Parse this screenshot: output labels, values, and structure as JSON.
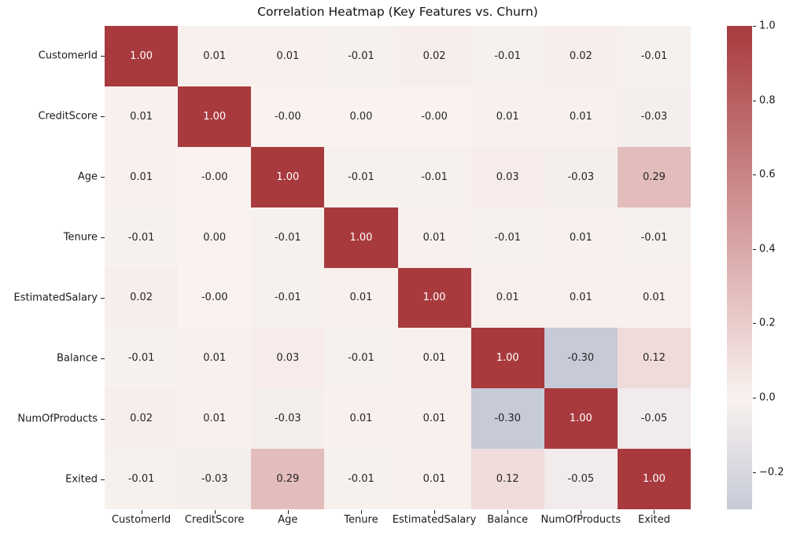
{
  "chart_data": {
    "type": "heatmap",
    "title": "Correlation Heatmap (Key Features vs. Churn)",
    "row_labels": [
      "CustomerId",
      "CreditScore",
      "Age",
      "Tenure",
      "EstimatedSalary",
      "Balance",
      "NumOfProducts",
      "Exited"
    ],
    "col_labels": [
      "CustomerId",
      "CreditScore",
      "Age",
      "Tenure",
      "EstimatedSalary",
      "Balance",
      "NumOfProducts",
      "Exited"
    ],
    "matrix": [
      [
        "1.00",
        "0.01",
        "0.01",
        "-0.01",
        "0.02",
        "-0.01",
        "0.02",
        "-0.01"
      ],
      [
        "0.01",
        "1.00",
        "-0.00",
        "0.00",
        "-0.00",
        "0.01",
        "0.01",
        "-0.03"
      ],
      [
        "0.01",
        "-0.00",
        "1.00",
        "-0.01",
        "-0.01",
        "0.03",
        "-0.03",
        "0.29"
      ],
      [
        "-0.01",
        "0.00",
        "-0.01",
        "1.00",
        "0.01",
        "-0.01",
        "0.01",
        "-0.01"
      ],
      [
        "0.02",
        "-0.00",
        "-0.01",
        "0.01",
        "1.00",
        "0.01",
        "0.01",
        "0.01"
      ],
      [
        "-0.01",
        "0.01",
        "0.03",
        "-0.01",
        "0.01",
        "1.00",
        "-0.30",
        "0.12"
      ],
      [
        "0.02",
        "0.01",
        "-0.03",
        "0.01",
        "0.01",
        "-0.30",
        "1.00",
        "-0.05"
      ],
      [
        "-0.01",
        "-0.03",
        "0.29",
        "-0.01",
        "0.01",
        "0.12",
        "-0.05",
        "1.00"
      ]
    ],
    "colormap": {
      "vmin": -0.3,
      "vmax": 1.0,
      "center": 0,
      "max_color": "#a83a3e",
      "mid_color": "#f9f2ef",
      "min_color": "#516e9e"
    },
    "annotation": {
      "light_text": "#ffffff",
      "dark_text": "#262626"
    },
    "colorbar": {
      "tick_labels": [
        "1.0",
        "0.8",
        "0.6",
        "0.4",
        "0.2",
        "0.0",
        "−0.2"
      ],
      "tick_values": [
        1.0,
        0.8,
        0.6,
        0.4,
        0.2,
        0.0,
        -0.2
      ],
      "grid": false,
      "legend_position": "right"
    }
  }
}
